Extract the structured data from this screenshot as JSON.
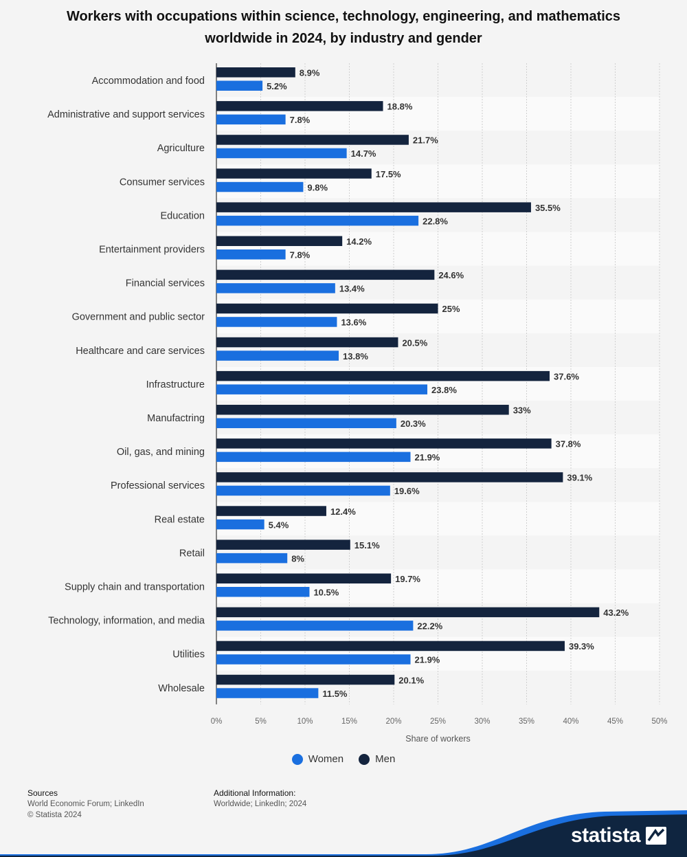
{
  "title": "Workers with occupations within science, technology, engineering, and mathematics worldwide in 2024, by industry and gender",
  "colors": {
    "women": "#1a6fdf",
    "men": "#14243e",
    "brand": "#0f2540",
    "brand_accent": "#1a6fdf"
  },
  "legend": {
    "women": "Women",
    "men": "Men"
  },
  "footer": {
    "sources_heading": "Sources",
    "sources_text": "World Economic Forum; LinkedIn",
    "copyright": "© Statista 2024",
    "info_heading": "Additional Information:",
    "info_text": "Worldwide; LinkedIn; 2024"
  },
  "brand_name": "statista",
  "chart_data": {
    "type": "bar",
    "orientation": "horizontal",
    "title": "Workers with occupations within science, technology, engineering, and mathematics worldwide in 2024, by industry and gender",
    "xlabel": "Share of workers",
    "ylabel": "",
    "xlim": [
      0,
      50
    ],
    "xticks": [
      "0%",
      "5%",
      "10%",
      "15%",
      "20%",
      "25%",
      "30%",
      "35%",
      "40%",
      "45%",
      "50%"
    ],
    "grid": true,
    "legend_position": "bottom",
    "categories": [
      "Accommodation and food",
      "Administrative and support services",
      "Agriculture",
      "Consumer services",
      "Education",
      "Entertainment providers",
      "Financial services",
      "Government and public sector",
      "Healthcare and care services",
      "Infrastructure",
      "Manufactring",
      "Oil, gas, and mining",
      "Professional services",
      "Real estate",
      "Retail",
      "Supply chain and transportation",
      "Technology, information, and media",
      "Utilities",
      "Wholesale"
    ],
    "series": [
      {
        "name": "Men",
        "values": [
          8.9,
          18.8,
          21.7,
          17.5,
          35.5,
          14.2,
          24.6,
          25,
          20.5,
          37.6,
          33,
          37.8,
          39.1,
          12.4,
          15.1,
          19.7,
          43.2,
          39.3,
          20.1
        ]
      },
      {
        "name": "Women",
        "values": [
          5.2,
          7.8,
          14.7,
          9.8,
          22.8,
          7.8,
          13.4,
          13.6,
          13.8,
          23.8,
          20.3,
          21.9,
          19.6,
          5.4,
          8,
          10.5,
          22.2,
          21.9,
          11.5
        ]
      }
    ]
  }
}
